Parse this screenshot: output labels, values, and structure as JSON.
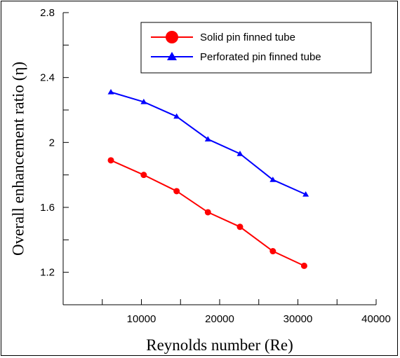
{
  "chart_data": {
    "type": "line",
    "xlabel": "Reynolds number (Re)",
    "ylabel": "Overall enhancement ratio (η)",
    "xlim": [
      0,
      40000
    ],
    "ylim": [
      1.0,
      2.8
    ],
    "x_ticks": [
      0,
      10000,
      20000,
      30000,
      40000
    ],
    "x_tick_labels": [
      "",
      "10000",
      "20000",
      "30000",
      "40000"
    ],
    "y_ticks": [
      1.0,
      1.2,
      1.4,
      1.6,
      1.8,
      2.0,
      2.2,
      2.4,
      2.6,
      2.8
    ],
    "y_tick_labels": [
      "",
      "1.2",
      "",
      "1.6",
      "",
      "2",
      "",
      "2.4",
      "",
      "2.8"
    ],
    "grid": false,
    "legend_position": "top-right",
    "series": [
      {
        "name": "Solid pin finned tube",
        "color": "#ff0000",
        "marker": "circle",
        "x": [
          6100,
          10300,
          14500,
          18500,
          22600,
          26800,
          30800
        ],
        "y": [
          1.89,
          1.8,
          1.7,
          1.57,
          1.48,
          1.33,
          1.24
        ]
      },
      {
        "name": "Perforated pin finned tube",
        "color": "#0000ff",
        "marker": "triangle",
        "x": [
          6100,
          10300,
          14500,
          18500,
          22600,
          26800,
          31000
        ],
        "y": [
          2.31,
          2.25,
          2.16,
          2.02,
          1.93,
          1.77,
          1.68
        ]
      }
    ]
  }
}
